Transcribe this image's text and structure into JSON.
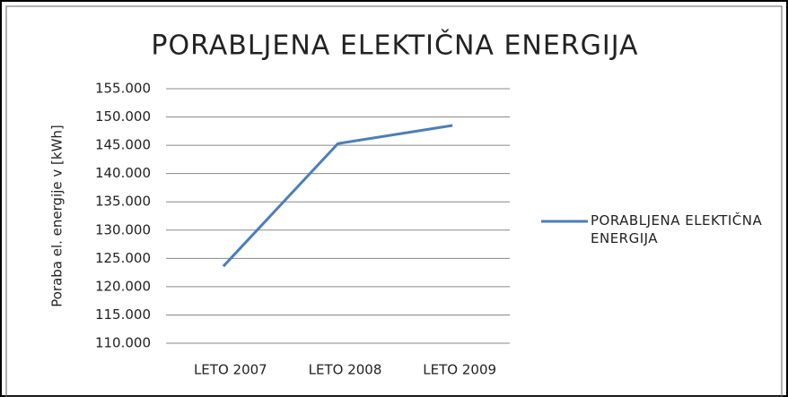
{
  "chart_data": {
    "type": "line",
    "title": "PORABLJENA ELEKTIČNA ENERGIJA",
    "ylabel": "Poraba el. energije v [kWh]",
    "categories": [
      "LETO 2007",
      "LETO 2008",
      "LETO 2009"
    ],
    "series": [
      {
        "name": "PORABLJENA ELEKTIČNA ENERGIJA",
        "color": "#4a7ebb",
        "values": [
          123600,
          145300,
          148500
        ]
      }
    ],
    "ylim": [
      110000,
      155000
    ],
    "yticks": [
      {
        "value": 110000,
        "label": "110.000"
      },
      {
        "value": 115000,
        "label": "115.000"
      },
      {
        "value": 120000,
        "label": "120.000"
      },
      {
        "value": 125000,
        "label": "125.000"
      },
      {
        "value": 130000,
        "label": "130.000"
      },
      {
        "value": 135000,
        "label": "135.000"
      },
      {
        "value": 140000,
        "label": "140.000"
      },
      {
        "value": 145000,
        "label": "145.000"
      },
      {
        "value": 150000,
        "label": "150.000"
      },
      {
        "value": 155000,
        "label": "155.000"
      }
    ],
    "grid": true,
    "legend": "right"
  }
}
